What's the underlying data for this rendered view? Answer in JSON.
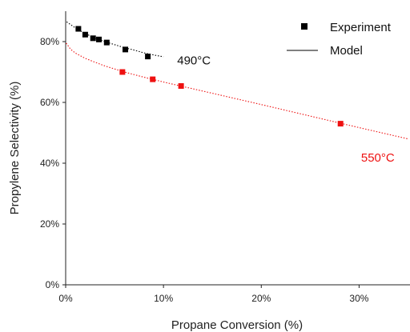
{
  "chart_data": {
    "type": "scatter",
    "title": "",
    "xlabel": "Propane Conversion (%)",
    "ylabel": "Propylene Selectivity (%)",
    "xlim": [
      0,
      35
    ],
    "ylim": [
      0,
      90
    ],
    "x_ticks": [
      0,
      10,
      20,
      30
    ],
    "x_tick_labels": [
      "0%",
      "10%",
      "20%",
      "30%"
    ],
    "y_ticks": [
      0,
      20,
      40,
      60,
      80
    ],
    "y_tick_labels": [
      "0%",
      "20%",
      "40%",
      "60%",
      "80%"
    ],
    "grid": false,
    "legend": {
      "position": "top-right",
      "entries": [
        {
          "label": "Experiment",
          "marker": "square",
          "color": "#000000"
        },
        {
          "label": "Model",
          "marker": "line",
          "color": "#000000"
        }
      ]
    },
    "series": [
      {
        "kind": "points",
        "color": "#000000",
        "points": [
          [
            1.3,
            84.2
          ],
          [
            2.0,
            82.3
          ],
          [
            2.8,
            81.1
          ],
          [
            3.4,
            80.7
          ],
          [
            4.2,
            79.7
          ],
          [
            6.1,
            77.4
          ],
          [
            8.4,
            75.1
          ]
        ]
      },
      {
        "kind": "points",
        "color": "#ee1111",
        "points": [
          [
            5.8,
            70.0
          ],
          [
            8.9,
            67.6
          ],
          [
            11.8,
            65.4
          ],
          [
            28.1,
            53.0
          ]
        ]
      },
      {
        "kind": "model-line",
        "color": "#000000",
        "dash": "dotted",
        "points": [
          [
            0.1,
            86.5
          ],
          [
            1,
            84.5
          ],
          [
            2,
            82.6
          ],
          [
            3,
            81.2
          ],
          [
            4,
            80.0
          ],
          [
            5,
            79.0
          ],
          [
            6,
            78.0
          ],
          [
            7,
            77.2
          ],
          [
            8,
            76.3
          ],
          [
            9,
            75.6
          ],
          [
            10,
            75.0
          ]
        ]
      },
      {
        "kind": "model-line",
        "color": "#ee1111",
        "dash": "dotted",
        "points": [
          [
            0.05,
            79.5
          ],
          [
            0.5,
            77.5
          ],
          [
            1,
            76.2
          ],
          [
            2,
            74.5
          ],
          [
            3,
            73.2
          ],
          [
            4,
            72.0
          ],
          [
            5,
            71.0
          ],
          [
            6,
            70.0
          ],
          [
            8,
            68.3
          ],
          [
            10,
            66.7
          ],
          [
            12,
            65.2
          ],
          [
            15,
            63.0
          ],
          [
            20,
            59.3
          ],
          [
            25,
            55.5
          ],
          [
            30,
            51.7
          ],
          [
            35,
            48.0
          ]
        ]
      }
    ],
    "annotations": [
      {
        "text": "490°C",
        "x": 11.4,
        "y": 72.5,
        "color": "#111111"
      },
      {
        "text": "550°C",
        "x": 30.2,
        "y": 40.5,
        "color": "#ee1111"
      }
    ]
  }
}
